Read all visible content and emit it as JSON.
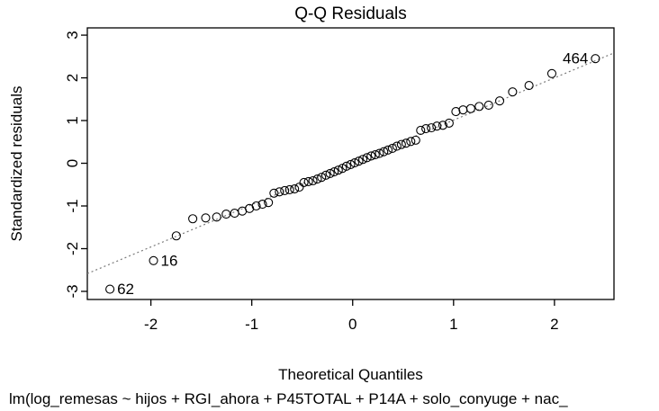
{
  "chart_data": {
    "type": "scatter",
    "title": "Q-Q Residuals",
    "xlabel": "Theoretical Quantiles",
    "ylabel": "Standardized residuals",
    "caption": "lm(log_remesas ~ hijos + RGI_ahora + P45TOTAL + P14A + solo_conyuge + nac_",
    "xlim": [
      -2.63,
      2.59
    ],
    "ylim": [
      -3.19,
      3.17
    ],
    "x_ticks": [
      -2,
      -1,
      0,
      1,
      2
    ],
    "y_ticks": [
      -3,
      -2,
      -1,
      0,
      1,
      2,
      3
    ],
    "grid": false,
    "legend": "none",
    "marker": "open-circle",
    "colors": {
      "background": "#ffffff",
      "points": "#000000",
      "reference_line": "#7a7a7a",
      "text": "#000000",
      "box": "#000000"
    },
    "reference_line": {
      "style": "dotted",
      "slope": 0.99,
      "intercept": 0.02
    },
    "points": [
      [
        -2.406,
        -2.95
      ],
      [
        -1.974,
        -2.28
      ],
      [
        -1.748,
        -1.7
      ],
      [
        -1.585,
        -1.3
      ],
      [
        -1.457,
        -1.28
      ],
      [
        -1.348,
        -1.26
      ],
      [
        -1.254,
        -1.19
      ],
      [
        -1.17,
        -1.17
      ],
      [
        -1.094,
        -1.12
      ],
      [
        -1.023,
        -1.06
      ],
      [
        -0.956,
        -1.0
      ],
      [
        -0.894,
        -0.96
      ],
      [
        -0.835,
        -0.92
      ],
      [
        -0.78,
        -0.7
      ],
      [
        -0.726,
        -0.67
      ],
      [
        -0.674,
        -0.64
      ],
      [
        -0.625,
        -0.62
      ],
      [
        -0.576,
        -0.6
      ],
      [
        -0.529,
        -0.56
      ],
      [
        -0.483,
        -0.45
      ],
      [
        -0.438,
        -0.43
      ],
      [
        -0.394,
        -0.41
      ],
      [
        -0.35,
        -0.37
      ],
      [
        -0.308,
        -0.33
      ],
      [
        -0.265,
        -0.28
      ],
      [
        -0.224,
        -0.24
      ],
      [
        -0.183,
        -0.2
      ],
      [
        -0.142,
        -0.16
      ],
      [
        -0.101,
        -0.12
      ],
      [
        -0.061,
        -0.07
      ],
      [
        -0.02,
        -0.03
      ],
      [
        0.02,
        0.01
      ],
      [
        0.061,
        0.05
      ],
      [
        0.101,
        0.09
      ],
      [
        0.142,
        0.13
      ],
      [
        0.183,
        0.17
      ],
      [
        0.224,
        0.2
      ],
      [
        0.265,
        0.23
      ],
      [
        0.308,
        0.27
      ],
      [
        0.35,
        0.31
      ],
      [
        0.394,
        0.35
      ],
      [
        0.438,
        0.4
      ],
      [
        0.483,
        0.44
      ],
      [
        0.529,
        0.47
      ],
      [
        0.576,
        0.51
      ],
      [
        0.625,
        0.54
      ],
      [
        0.674,
        0.77
      ],
      [
        0.726,
        0.81
      ],
      [
        0.78,
        0.83
      ],
      [
        0.835,
        0.87
      ],
      [
        0.894,
        0.89
      ],
      [
        0.956,
        0.94
      ],
      [
        1.023,
        1.21
      ],
      [
        1.094,
        1.25
      ],
      [
        1.17,
        1.28
      ],
      [
        1.254,
        1.33
      ],
      [
        1.348,
        1.36
      ],
      [
        1.457,
        1.46
      ],
      [
        1.585,
        1.67
      ],
      [
        1.748,
        1.82
      ],
      [
        1.974,
        2.1
      ],
      [
        2.406,
        2.45
      ]
    ],
    "labeled_points": [
      {
        "label": "62",
        "x": -2.406,
        "y": -2.95,
        "side": "right"
      },
      {
        "label": "16",
        "x": -1.974,
        "y": -2.28,
        "side": "right"
      },
      {
        "label": "464",
        "x": 2.406,
        "y": 2.45,
        "side": "left"
      }
    ]
  }
}
